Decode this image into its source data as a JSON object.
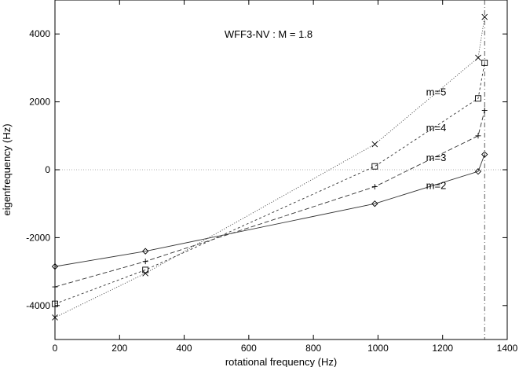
{
  "chart_data": {
    "type": "line",
    "title": "WFF3-NV :  M = 1.8",
    "xlabel": "rotational frequency (Hz)",
    "ylabel": "eigenfrequency (Hz)",
    "xlim": [
      0,
      1400
    ],
    "ylim": [
      -5000,
      5000
    ],
    "x_ticks": [
      0,
      200,
      400,
      600,
      800,
      1000,
      1200,
      1400
    ],
    "y_ticks": [
      -4000,
      -2000,
      0,
      2000,
      4000
    ],
    "grid": false,
    "legend": "none",
    "zero_line": true,
    "vertical_reference_x": 1330,
    "series": [
      {
        "name": "m=2",
        "marker": "diamond",
        "dash": "solid",
        "x": [
          0,
          280,
          990,
          1310,
          1330
        ],
        "y": [
          -2850,
          -2400,
          -1000,
          -50,
          450
        ]
      },
      {
        "name": "m=3",
        "marker": "plus",
        "dash": "dashed",
        "x": [
          0,
          280,
          990,
          1310,
          1330
        ],
        "y": [
          -3450,
          -2700,
          -500,
          1000,
          1750
        ]
      },
      {
        "name": "m=4",
        "marker": "square",
        "dash": "short-dashed",
        "x": [
          0,
          280,
          990,
          1310,
          1330
        ],
        "y": [
          -3950,
          -2950,
          100,
          2100,
          3150
        ]
      },
      {
        "name": "m=5",
        "marker": "cross",
        "dash": "dotted",
        "x": [
          0,
          280,
          990,
          1310,
          1330
        ],
        "y": [
          -4350,
          -3050,
          750,
          3300,
          4500
        ]
      }
    ],
    "annotations": [
      {
        "text": "m=5",
        "x": 1180,
        "y": 2300
      },
      {
        "text": "m=4",
        "x": 1180,
        "y": 1250
      },
      {
        "text": "m=3",
        "x": 1180,
        "y": 370
      },
      {
        "text": "m=2",
        "x": 1180,
        "y": -450
      }
    ]
  }
}
